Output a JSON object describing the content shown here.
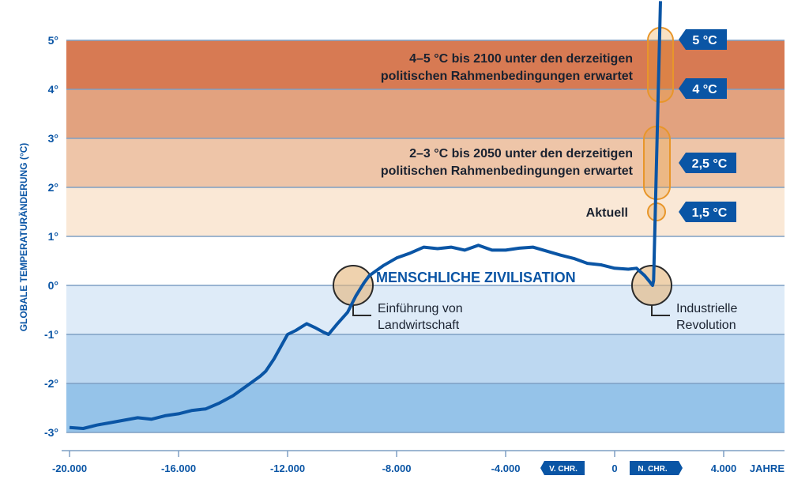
{
  "chart_data": {
    "type": "line",
    "ylabel": "GLOBALE TEMPERATURÄNDERUNG (°C)",
    "xlabel": "JAHRE",
    "xlim": [
      -20100,
      6300
    ],
    "ylim": [
      -3,
      5
    ],
    "x_ticks": [
      {
        "value": -20000,
        "label": "-20.000"
      },
      {
        "value": -16000,
        "label": "-16.000"
      },
      {
        "value": -12000,
        "label": "-12.000"
      },
      {
        "value": -8000,
        "label": "-8.000"
      },
      {
        "value": -4000,
        "label": "-4.000"
      },
      {
        "value": 0,
        "label": "0"
      },
      {
        "value": 4000,
        "label": "4.000"
      }
    ],
    "y_ticks": [
      {
        "value": 5,
        "label": "5°"
      },
      {
        "value": 4,
        "label": "4°"
      },
      {
        "value": 3,
        "label": "3°"
      },
      {
        "value": 2,
        "label": "2°"
      },
      {
        "value": 1,
        "label": "1°"
      },
      {
        "value": 0,
        "label": "0°"
      },
      {
        "value": -1,
        "label": "-1°"
      },
      {
        "value": -2,
        "label": "-2°"
      },
      {
        "value": -3,
        "label": "-3°"
      }
    ],
    "era_badges": {
      "bc": "V. CHR.",
      "ad": "N. CHR."
    },
    "bands": [
      {
        "from": 4,
        "to": 5,
        "color": "#d77a53"
      },
      {
        "from": 3,
        "to": 4,
        "color": "#e2a27f"
      },
      {
        "from": 2,
        "to": 3,
        "color": "#eec5a8"
      },
      {
        "from": 1,
        "to": 2,
        "color": "#fae8d6"
      },
      {
        "from": 0,
        "to": 1,
        "color": "#ffffff"
      },
      {
        "from": -1,
        "to": 0,
        "color": "#deebf8"
      },
      {
        "from": -2,
        "to": -1,
        "color": "#bdd8f1"
      },
      {
        "from": -3,
        "to": -2,
        "color": "#95c3e9"
      }
    ],
    "line_color": "#0a55a5",
    "series": [
      {
        "x": [
          -20000,
          -19500,
          -19000,
          -18500,
          -18000,
          -17500,
          -17000,
          -16500,
          -16000,
          -15500,
          -15000,
          -14500,
          -14000,
          -13500,
          -13000,
          -12800,
          -12500,
          -12000,
          -11700,
          -11300,
          -11000,
          -10700,
          -10500,
          -10200,
          -9800,
          -9500,
          -9200,
          -9000,
          -8500,
          -8000,
          -7500,
          -7000,
          -6500,
          -6000,
          -5500,
          -5000,
          -4500,
          -4000,
          -3500,
          -3000,
          -2500,
          -2000,
          -1500,
          -1000,
          -500,
          0,
          500,
          800,
          1100,
          1250,
          1390,
          1430,
          1680
        ],
        "y": [
          -2.9,
          -2.92,
          -2.85,
          -2.8,
          -2.75,
          -2.7,
          -2.73,
          -2.66,
          -2.62,
          -2.55,
          -2.52,
          -2.4,
          -2.25,
          -2.05,
          -1.85,
          -1.75,
          -1.5,
          -1.0,
          -0.92,
          -0.78,
          -0.86,
          -0.95,
          -1.0,
          -0.8,
          -0.55,
          -0.22,
          0.05,
          0.2,
          0.4,
          0.56,
          0.66,
          0.78,
          0.75,
          0.78,
          0.72,
          0.82,
          0.72,
          0.72,
          0.76,
          0.78,
          0.7,
          0.62,
          0.55,
          0.45,
          0.42,
          0.35,
          0.33,
          0.35,
          0.2,
          0.1,
          0.0,
          0.1,
          5.8
        ]
      }
    ],
    "annotations": {
      "civilization": "MENSCHLICHE ZIVILISATION",
      "agriculture": {
        "x": -9400,
        "y": 0,
        "line1": "Einführung von",
        "line2": "Landwirtschaft"
      },
      "industrial": {
        "x": 1350,
        "y": 0,
        "line1": "Industrielle",
        "line2": "Revolution"
      },
      "band_2100": {
        "line1": "4–5 °C bis 2100 unter den derzeitigen",
        "line2": "politischen Rahmenbedingungen erwartet"
      },
      "band_2050": {
        "line1": "2–3 °C bis 2050 unter den derzeitigen",
        "line2": "politischen Rahmenbedingungen erwartet"
      },
      "current": "Aktuell",
      "markers": [
        {
          "value": 5,
          "label": "5 °C"
        },
        {
          "value": 4,
          "label": "4 °C"
        },
        {
          "value": 2.5,
          "label": "2,5 °C"
        },
        {
          "value": 1.5,
          "label": "1,5 °C"
        }
      ],
      "highlight_color": "#e8962a"
    }
  }
}
